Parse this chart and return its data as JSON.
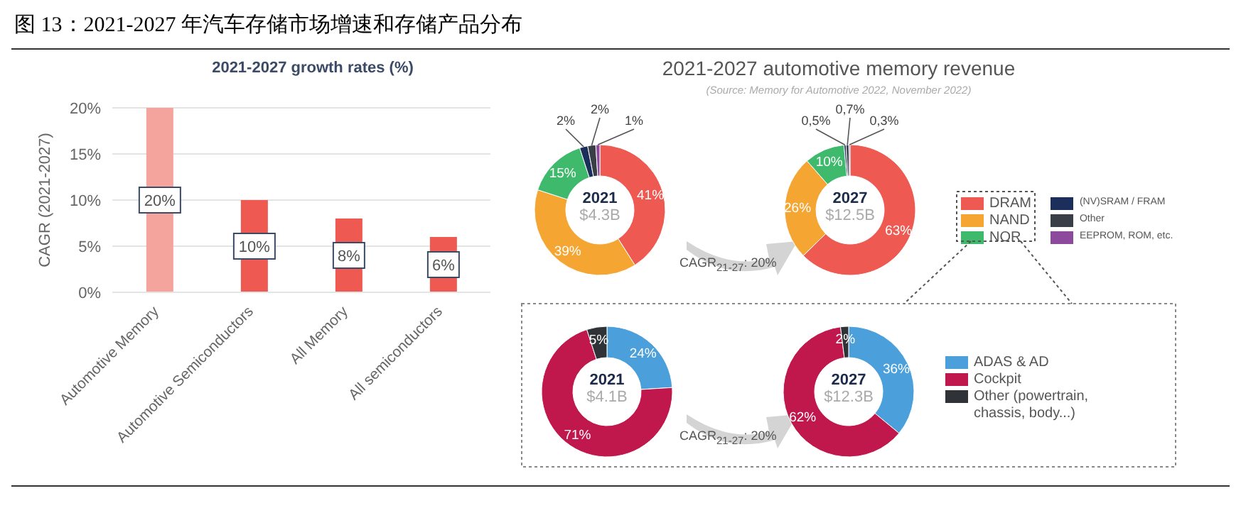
{
  "chart_data": [
    {
      "type": "bar",
      "title": "图 13：2021-2027 年汽车存储市场增速和存储产品分布",
      "subtitle": "2021-2027 growth rates (%)",
      "ylabel": "CAGR (2021-2027)",
      "categories": [
        "Automotive Memory",
        "Automotive Semiconductors",
        "All Memory",
        "All semiconductors"
      ],
      "values": [
        20,
        10,
        8,
        6
      ],
      "colors": [
        "#f4a49c",
        "#ee5a52",
        "#ee5a52",
        "#ee5a52"
      ],
      "value_labels": [
        "20%",
        "10%",
        "8%",
        "6%"
      ],
      "ylim": [
        0,
        20
      ],
      "yticks": [
        {
          "value": 0,
          "label": "0%"
        },
        {
          "value": 5,
          "label": "5%"
        },
        {
          "value": 10,
          "label": "10%"
        },
        {
          "value": 15,
          "label": "15%"
        },
        {
          "value": 20,
          "label": "20%"
        }
      ],
      "grid": "y"
    },
    {
      "type": "donut",
      "title": "2021-2027 automotive memory revenue",
      "subtitle": "(Source: Memory for Automotive 2022, November 2022)",
      "categories": [
        "DRAM",
        "NAND",
        "NOR",
        "(NV)SRAM / FRAM",
        "Other",
        "EEPROM, ROM, etc."
      ],
      "colors": [
        "#ee5a52",
        "#f5a531",
        "#3fba6c",
        "#1c2f5a",
        "#3a3f47",
        "#8b4a9c"
      ],
      "series": [
        {
          "name": "2021",
          "values": [
            41,
            39,
            15,
            2,
            2,
            1
          ],
          "value_labels": [
            "41%",
            "39%",
            "15%",
            "2%",
            "2%",
            "1%"
          ]
        },
        {
          "name": "2027",
          "values": [
            63,
            26,
            10,
            0.5,
            0.7,
            0.3
          ],
          "value_labels": [
            "63%",
            "26%",
            "10%",
            "0,5%",
            "0,7%",
            "0,3%"
          ]
        }
      ],
      "annotations": [
        "$4.3B",
        "$12.5B",
        "CAGR$_{21-27}$: 20%"
      ],
      "legend": "right"
    },
    {
      "type": "donut",
      "categories": [
        "ADAS & AD",
        "Cockpit",
        "Other (powertrain, chassis, body...)"
      ],
      "colors": [
        "#4ba0dc",
        "#c0184c",
        "#2f3338"
      ],
      "series": [
        {
          "name": "2021",
          "values": [
            24,
            71,
            5
          ],
          "value_labels": [
            "24%",
            "71%",
            "5%"
          ]
        },
        {
          "name": "2027",
          "values": [
            36,
            62,
            2
          ],
          "value_labels": [
            "36%",
            "62%",
            "2%"
          ]
        }
      ],
      "annotations": [
        "$4.1B",
        "$12.3B",
        "CAGR$_{21-27}$: 20%"
      ],
      "legend": "right"
    }
  ]
}
